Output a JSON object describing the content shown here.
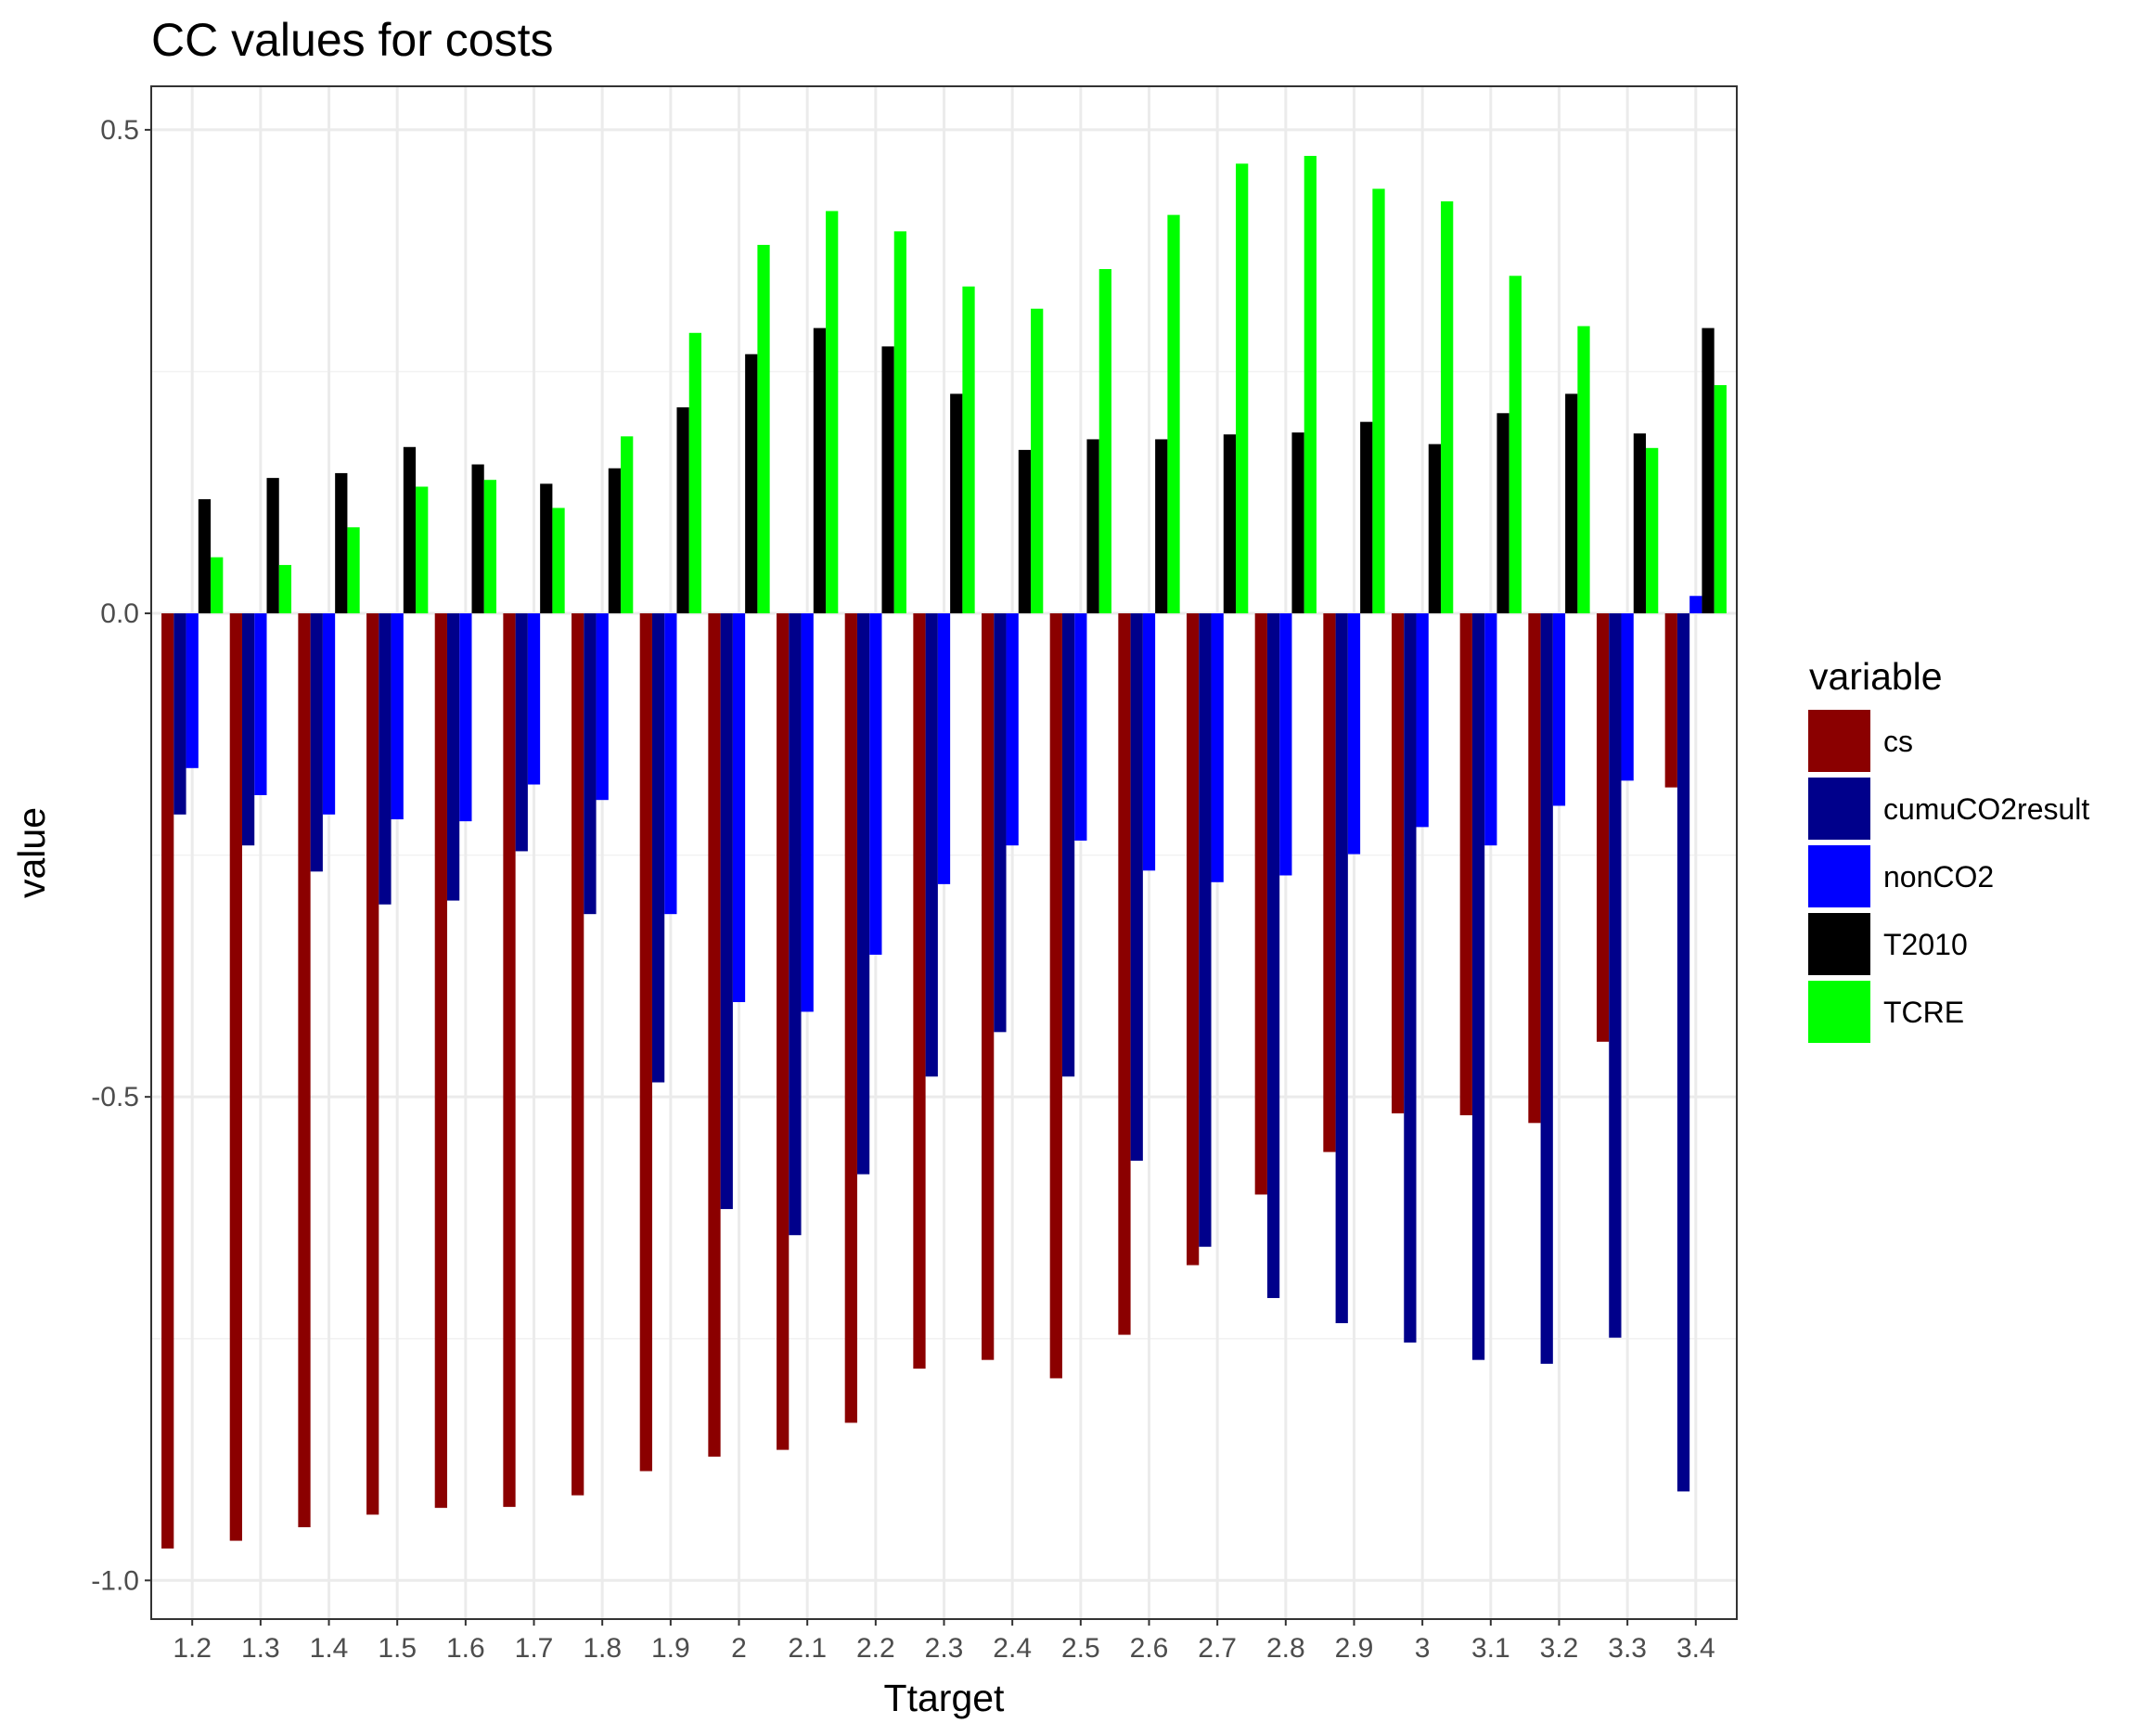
{
  "chart_data": {
    "type": "bar",
    "title": "CC values for costs",
    "xlabel": "Ttarget",
    "ylabel": "value",
    "ylim": [
      -1.04,
      0.545
    ],
    "yticks": [
      -1.0,
      -0.5,
      0.0,
      0.5
    ],
    "ytick_labels": [
      "-1.0",
      "-0.5",
      "0.0",
      "0.5"
    ],
    "grid": true,
    "categories": [
      "1.2",
      "1.3",
      "1.4",
      "1.5",
      "1.6",
      "1.7",
      "1.8",
      "1.9",
      "2",
      "2.1",
      "2.2",
      "2.3",
      "2.4",
      "2.5",
      "2.6",
      "2.7",
      "2.8",
      "2.9",
      "3",
      "3.1",
      "3.2",
      "3.3",
      "3.4"
    ],
    "legend": {
      "title": "variable",
      "placement": "right"
    },
    "series": [
      {
        "name": "cs",
        "color": "#8b0000",
        "values": [
          -0.967,
          -0.959,
          -0.945,
          -0.932,
          -0.925,
          -0.924,
          -0.912,
          -0.887,
          -0.872,
          -0.865,
          -0.837,
          -0.781,
          -0.772,
          -0.791,
          -0.746,
          -0.674,
          -0.601,
          -0.557,
          -0.517,
          -0.519,
          -0.527,
          -0.443,
          -0.18
        ]
      },
      {
        "name": "cumuCO2result",
        "color": "#00008b",
        "values": [
          -0.208,
          -0.24,
          -0.267,
          -0.301,
          -0.297,
          -0.246,
          -0.311,
          -0.485,
          -0.616,
          -0.643,
          -0.58,
          -0.479,
          -0.433,
          -0.479,
          -0.566,
          -0.655,
          -0.708,
          -0.734,
          -0.754,
          -0.772,
          -0.776,
          -0.749,
          -0.908
        ]
      },
      {
        "name": "nonCO2",
        "color": "#0000ff",
        "values": [
          -0.16,
          -0.188,
          -0.208,
          -0.213,
          -0.215,
          -0.177,
          -0.193,
          -0.311,
          -0.402,
          -0.412,
          -0.353,
          -0.28,
          -0.24,
          -0.235,
          -0.266,
          -0.278,
          -0.271,
          -0.249,
          -0.221,
          -0.24,
          -0.199,
          -0.173,
          0.018
        ]
      },
      {
        "name": "T2010",
        "color": "#000000",
        "values": [
          0.118,
          0.14,
          0.145,
          0.172,
          0.154,
          0.134,
          0.15,
          0.213,
          0.268,
          0.295,
          0.276,
          0.227,
          0.169,
          0.18,
          0.18,
          0.185,
          0.187,
          0.198,
          0.175,
          0.207,
          0.227,
          0.186,
          0.295
        ]
      },
      {
        "name": "TCRE",
        "color": "#00ff00",
        "values": [
          0.058,
          0.05,
          0.089,
          0.131,
          0.138,
          0.109,
          0.183,
          0.29,
          0.381,
          0.416,
          0.395,
          0.338,
          0.315,
          0.356,
          0.412,
          0.465,
          0.473,
          0.439,
          0.426,
          0.349,
          0.297,
          0.171,
          0.236
        ]
      }
    ]
  }
}
